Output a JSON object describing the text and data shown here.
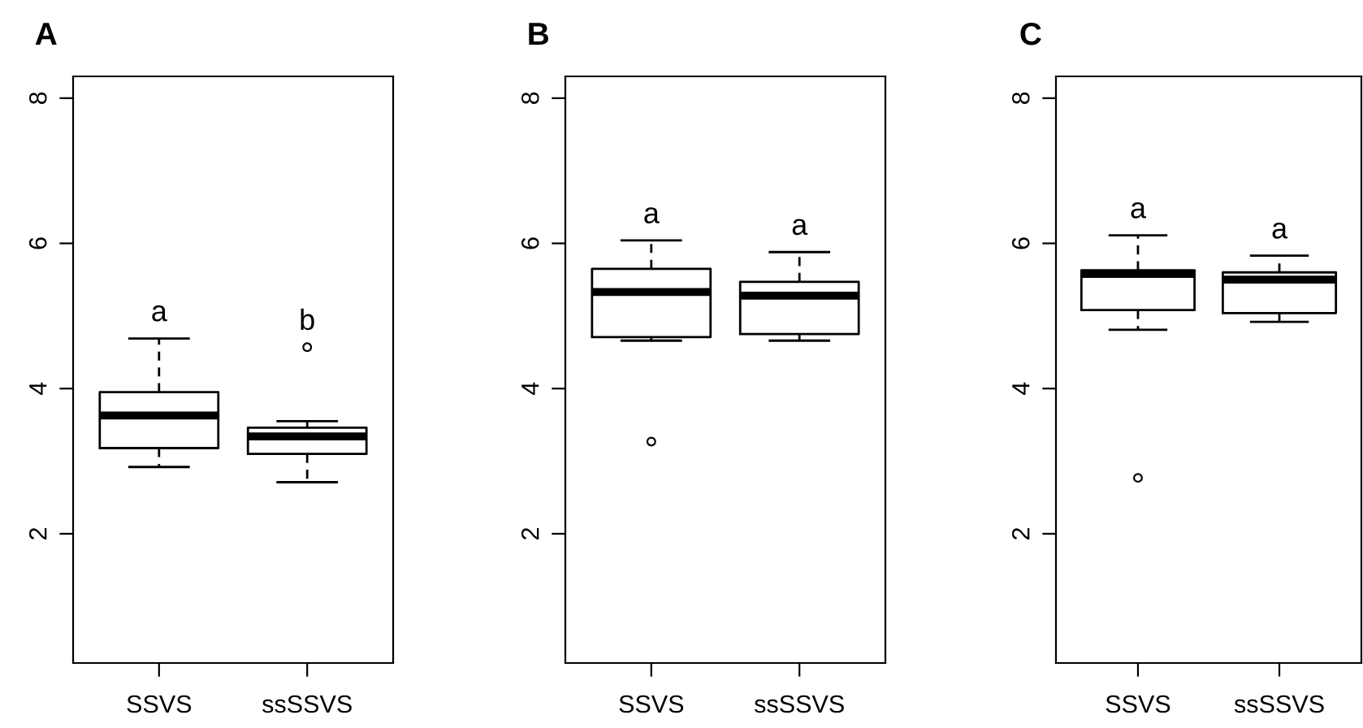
{
  "chart_data": [
    {
      "type": "box",
      "title": "A",
      "categories": [
        "SSVS",
        "ssSSVS"
      ],
      "ylim": [
        0.22,
        8.3
      ],
      "yticks": [
        2,
        4,
        6,
        8
      ],
      "grid": false,
      "legend": false,
      "boxes": [
        {
          "low": 2.92,
          "q1": 3.18,
          "median": 3.63,
          "q3": 3.95,
          "high": 4.69
        },
        {
          "low": 2.71,
          "q1": 3.1,
          "median": 3.34,
          "q3": 3.46,
          "high": 3.55,
          "outliers": [
            4.57
          ]
        }
      ],
      "annotations": [
        "a",
        "b"
      ]
    },
    {
      "type": "box",
      "title": "B",
      "categories": [
        "SSVS",
        "ssSSVS"
      ],
      "ylim": [
        0.22,
        8.3
      ],
      "yticks": [
        2,
        4,
        6,
        8
      ],
      "grid": false,
      "legend": false,
      "boxes": [
        {
          "low": 4.66,
          "q1": 4.71,
          "median": 5.33,
          "q3": 5.65,
          "high": 6.04,
          "outliers": [
            3.27
          ]
        },
        {
          "low": 4.66,
          "q1": 4.75,
          "median": 5.28,
          "q3": 5.47,
          "high": 5.88
        }
      ],
      "annotations": [
        "a",
        "a"
      ]
    },
    {
      "type": "box",
      "title": "C",
      "categories": [
        "SSVS",
        "ssSSVS"
      ],
      "ylim": [
        0.22,
        8.3
      ],
      "yticks": [
        2,
        4,
        6,
        8
      ],
      "grid": false,
      "legend": false,
      "boxes": [
        {
          "low": 4.81,
          "q1": 5.08,
          "median": 5.58,
          "q3": 5.63,
          "high": 6.11,
          "outliers": [
            2.77
          ]
        },
        {
          "low": 4.92,
          "q1": 5.04,
          "median": 5.5,
          "q3": 5.6,
          "high": 5.83
        }
      ],
      "annotations": [
        "a",
        "a"
      ]
    }
  ]
}
